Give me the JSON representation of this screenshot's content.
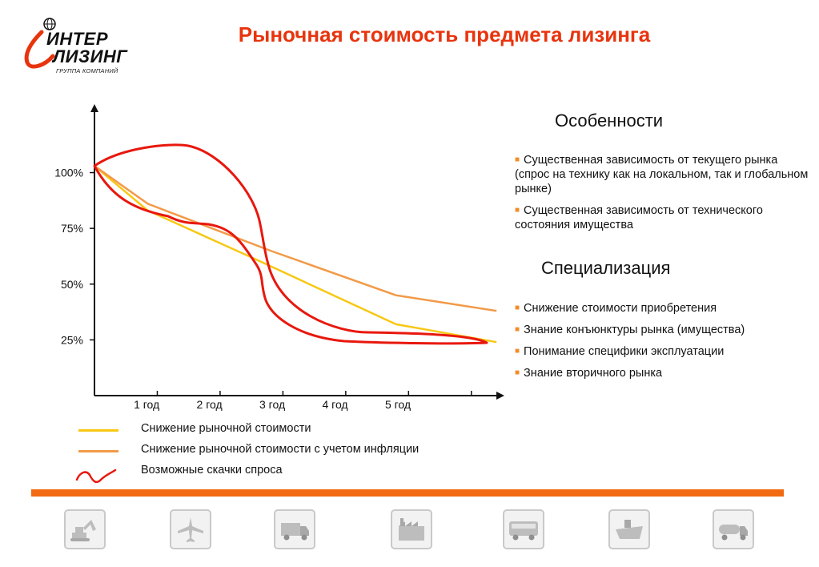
{
  "logo": {
    "line1": "ИНТЕР",
    "line2": "ЛИЗИНГ",
    "subtitle": "ГРУППА КОМПАНИЙ"
  },
  "title": "Рыночная стоимость предмета лизинга",
  "chart_data": {
    "type": "line",
    "x_tick_labels": [
      "1 год",
      "2 год",
      "3 год",
      "4 год",
      "5 год"
    ],
    "y_tick_labels": [
      "100%",
      "75%",
      "50%",
      "25%"
    ],
    "y_ticks": [
      100,
      75,
      50,
      25
    ],
    "ylim": [
      0,
      130
    ],
    "xlim": [
      0,
      6.5
    ],
    "series": [
      {
        "name": "Снижение рыночной стоимости",
        "color": "#f7c814",
        "points": [
          [
            0,
            103
          ],
          [
            0.85,
            83
          ],
          [
            2.5,
            62
          ],
          [
            4.8,
            32
          ],
          [
            6.4,
            24
          ]
        ]
      },
      {
        "name": "Снижение рыночной стоимости с учетом инфляции",
        "color": "#f29a48",
        "points": [
          [
            0,
            103
          ],
          [
            0.85,
            86
          ],
          [
            2.8,
            65
          ],
          [
            4.8,
            45
          ],
          [
            6.4,
            38
          ]
        ]
      }
    ],
    "demand_spike": {
      "name": "Возможные скачки спроса",
      "color": "#e8180e"
    },
    "grid": false
  },
  "legend": [
    {
      "label": "Снижение рыночной стоимости",
      "color": "#f7c814",
      "kind": "line"
    },
    {
      "label": "Снижение рыночной стоимости с учетом инфляции",
      "color": "#f29a48",
      "kind": "line"
    },
    {
      "label": "Возможные скачки спроса",
      "color": "#e8180e",
      "kind": "squiggle"
    }
  ],
  "features": {
    "heading": "Особенности",
    "items": [
      "Существенная зависимость от текущего рынка (спрос на технику как на локальном, так и глобальном рынке)",
      "Существенная зависимость от технического состояния имущества"
    ]
  },
  "specialization": {
    "heading": "Специализация",
    "items": [
      "Снижение стоимости приобретения",
      "Знание конъюнктуры рынка (имущества)",
      "Понимание специфики эксплуатации",
      "Знание вторичного рынка"
    ]
  },
  "accent_color": "#f26a12",
  "equipment_icons": [
    "excavator-icon",
    "airplane-icon",
    "truck-icon",
    "factory-icon",
    "bus-icon",
    "ship-icon",
    "tanker-truck-icon"
  ]
}
